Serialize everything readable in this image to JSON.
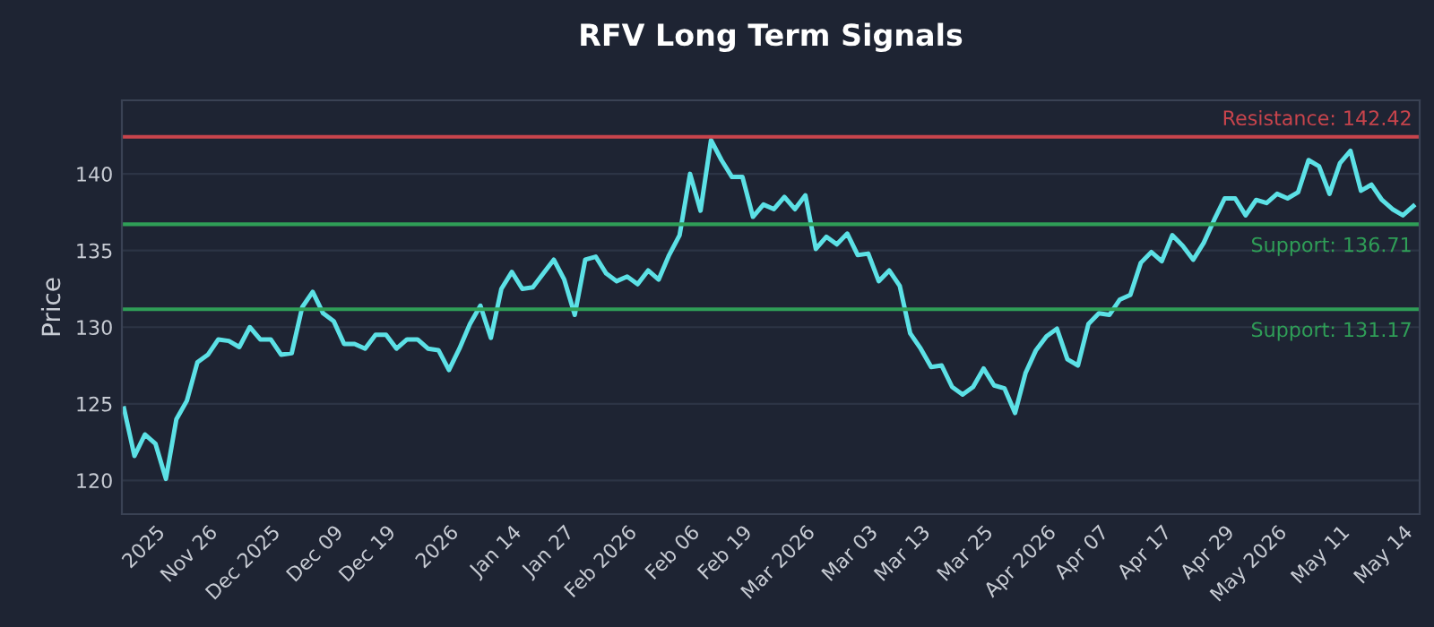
{
  "chart_data": {
    "type": "line",
    "title": "RFV Long Term Signals",
    "ylabel": "Price",
    "categories": [
      null,
      null,
      null,
      "2025",
      null,
      null,
      null,
      null,
      "Nov 26",
      null,
      null,
      null,
      null,
      null,
      "Dec 2025",
      null,
      null,
      null,
      null,
      null,
      "Dec 09",
      null,
      null,
      null,
      null,
      "Dec 19",
      null,
      null,
      null,
      null,
      null,
      "2026",
      null,
      null,
      null,
      null,
      null,
      "Jan 14",
      null,
      null,
      null,
      null,
      "Jan 27",
      null,
      null,
      null,
      null,
      null,
      "Feb 2026",
      null,
      null,
      null,
      null,
      null,
      "Feb 06",
      null,
      null,
      null,
      null,
      "Feb 19",
      null,
      null,
      null,
      null,
      null,
      "Mar 2026",
      null,
      null,
      null,
      null,
      null,
      "Mar 03",
      null,
      null,
      null,
      null,
      "Mar 13",
      null,
      null,
      null,
      null,
      null,
      "Mar 25",
      null,
      null,
      null,
      null,
      null,
      "Apr 2026",
      null,
      null,
      null,
      null,
      "Apr 07",
      null,
      null,
      null,
      null,
      null,
      "Apr 17",
      null,
      null,
      null,
      null,
      null,
      "Apr 29",
      null,
      null,
      null,
      null,
      "May 2026",
      null,
      null,
      null,
      null,
      null,
      "May 11",
      null,
      null,
      null,
      null,
      null,
      "May 14",
      null
    ],
    "series": [
      {
        "color": "#5ce1e6",
        "values": [
          124.7,
          121.6,
          123.0,
          122.4,
          120.1,
          124.0,
          125.2,
          127.7,
          128.2,
          129.2,
          129.1,
          128.7,
          130.0,
          129.2,
          129.2,
          128.2,
          128.3,
          131.3,
          132.3,
          130.9,
          130.4,
          128.9,
          128.9,
          128.6,
          129.5,
          129.5,
          128.6,
          129.2,
          129.2,
          128.6,
          128.5,
          127.2,
          128.6,
          130.2,
          131.4,
          129.3,
          132.5,
          133.6,
          132.5,
          132.6,
          133.5,
          134.4,
          133.1,
          130.8,
          134.4,
          134.6,
          133.5,
          133.0,
          133.3,
          132.8,
          133.7,
          133.1,
          134.7,
          136.0,
          140.0,
          137.6,
          142.2,
          140.9,
          139.8,
          139.8,
          137.2,
          138.0,
          137.7,
          138.5,
          137.7,
          138.6,
          135.1,
          135.9,
          135.4,
          136.1,
          134.7,
          134.8,
          133.0,
          133.7,
          132.7,
          129.6,
          128.6,
          127.4,
          127.5,
          126.1,
          125.6,
          126.1,
          127.3,
          126.2,
          126.0,
          124.4,
          127.0,
          128.5,
          129.4,
          129.9,
          127.9,
          127.5,
          130.2,
          130.9,
          130.8,
          131.8,
          132.1,
          134.2,
          134.9,
          134.3,
          136.0,
          135.3,
          134.4,
          135.5,
          137.0,
          138.4,
          138.4,
          137.3,
          138.3,
          138.1,
          138.7,
          138.4,
          138.8,
          140.9,
          140.5,
          138.7,
          140.7,
          141.5,
          138.9,
          139.3,
          138.3,
          137.7,
          137.3,
          137.9
        ]
      }
    ],
    "ylim": [
      117.8,
      144.8
    ],
    "yticks": [
      120,
      125,
      130,
      135,
      140
    ],
    "grid": "y",
    "ref_lines": [
      {
        "axis": "y",
        "value": 142.42,
        "label": "Resistance: 142.42",
        "color": "#c8444c"
      },
      {
        "axis": "y",
        "value": 136.71,
        "label": "Support: 136.71",
        "color": "#2f9e57"
      },
      {
        "axis": "y",
        "value": 131.17,
        "label": "Support: 131.17",
        "color": "#2f9e57"
      }
    ]
  }
}
